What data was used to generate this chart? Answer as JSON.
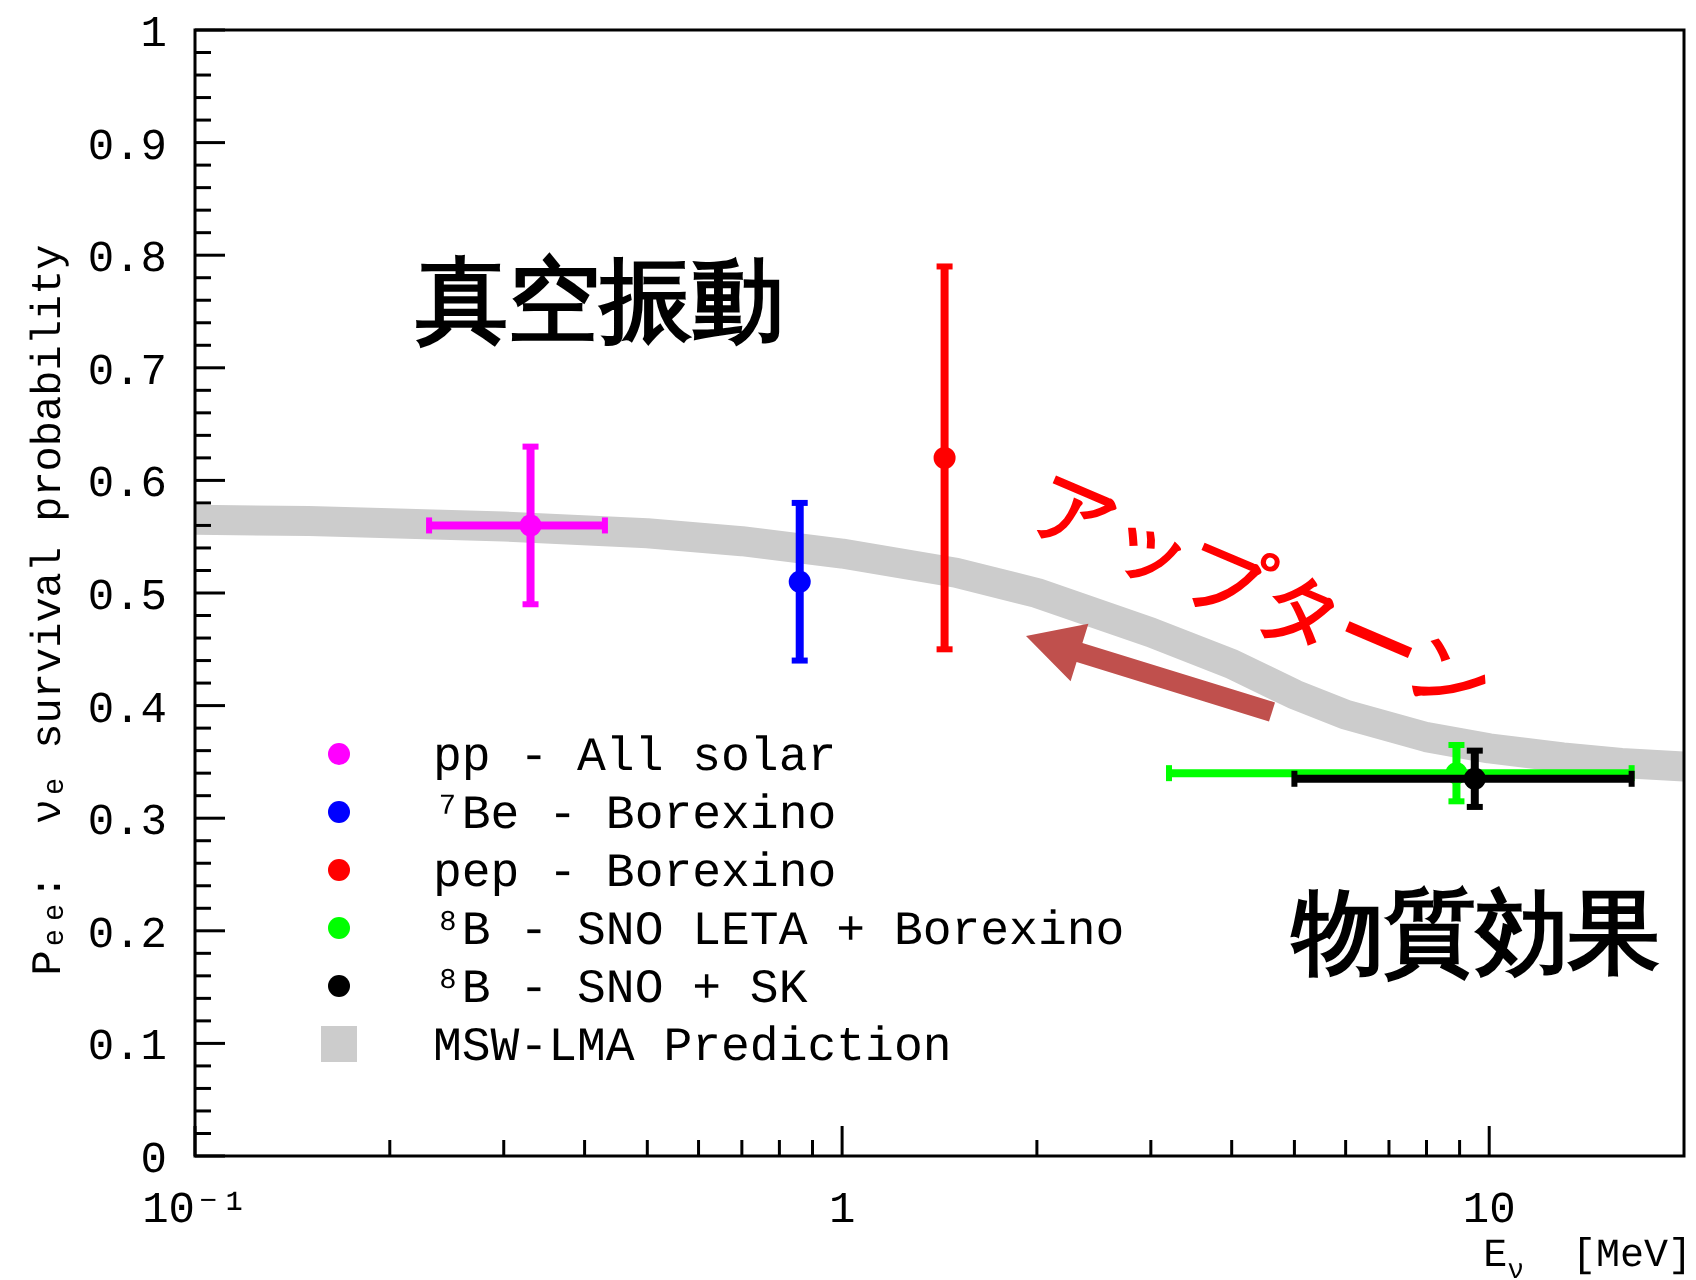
{
  "chart_data": {
    "type": "scatter",
    "xlabel": "E$_{ν}$  [MeV]",
    "ylabel": "Pₑₑ:  νₑ survival probability",
    "log": "x",
    "xlim": [
      0.1,
      20
    ],
    "ylim": [
      0,
      1
    ],
    "xticks": [
      {
        "value": 0.1,
        "label": "10⁻¹"
      },
      {
        "value": 0.2,
        "label": null
      },
      {
        "value": 0.3,
        "label": null
      },
      {
        "value": 0.4,
        "label": null
      },
      {
        "value": 0.5,
        "label": null
      },
      {
        "value": 0.6,
        "label": null
      },
      {
        "value": 0.7,
        "label": null
      },
      {
        "value": 0.8,
        "label": null
      },
      {
        "value": 0.9,
        "label": null
      },
      1,
      {
        "value": 2,
        "label": null
      },
      {
        "value": 3,
        "label": null
      },
      {
        "value": 4,
        "label": null
      },
      {
        "value": 5,
        "label": null
      },
      {
        "value": 6,
        "label": null
      },
      {
        "value": 7,
        "label": null
      },
      {
        "value": 8,
        "label": null
      },
      {
        "value": 9,
        "label": null
      },
      10
    ],
    "yticks": [
      0,
      {
        "value": 0.02,
        "label": null
      },
      {
        "value": 0.04,
        "label": null
      },
      {
        "value": 0.06,
        "label": null
      },
      {
        "value": 0.08,
        "label": null
      },
      0.1,
      {
        "value": 0.12,
        "label": null
      },
      {
        "value": 0.14,
        "label": null
      },
      {
        "value": 0.16,
        "label": null
      },
      {
        "value": 0.18,
        "label": null
      },
      0.2,
      {
        "value": 0.22,
        "label": null
      },
      {
        "value": 0.24,
        "label": null
      },
      {
        "value": 0.26,
        "label": null
      },
      {
        "value": 0.28,
        "label": null
      },
      0.3,
      {
        "value": 0.32,
        "label": null
      },
      {
        "value": 0.34,
        "label": null
      },
      {
        "value": 0.36,
        "label": null
      },
      {
        "value": 0.38,
        "label": null
      },
      0.4,
      {
        "value": 0.42,
        "label": null
      },
      {
        "value": 0.44,
        "label": null
      },
      {
        "value": 0.46,
        "label": null
      },
      {
        "value": 0.48,
        "label": null
      },
      0.5,
      {
        "value": 0.52,
        "label": null
      },
      {
        "value": 0.54,
        "label": null
      },
      {
        "value": 0.56,
        "label": null
      },
      {
        "value": 0.58,
        "label": null
      },
      0.6,
      {
        "value": 0.62,
        "label": null
      },
      {
        "value": 0.64,
        "label": null
      },
      {
        "value": 0.66,
        "label": null
      },
      {
        "value": 0.68,
        "label": null
      },
      0.7,
      {
        "value": 0.72,
        "label": null
      },
      {
        "value": 0.74,
        "label": null
      },
      {
        "value": 0.76,
        "label": null
      },
      {
        "value": 0.78,
        "label": null
      },
      0.8,
      {
        "value": 0.82,
        "label": null
      },
      {
        "value": 0.84,
        "label": null
      },
      {
        "value": 0.86,
        "label": null
      },
      {
        "value": 0.88,
        "label": null
      },
      0.9,
      {
        "value": 0.92,
        "label": null
      },
      {
        "value": 0.94,
        "label": null
      },
      {
        "value": 0.96,
        "label": null
      },
      {
        "value": 0.98,
        "label": null
      },
      1
    ],
    "legend": "bottom left",
    "annotations": [
      "真空振動",
      "アップターン",
      "物質効果"
    ],
    "series": [
      {
        "name": "pp - All solar",
        "color": "#ff00ff",
        "marker": "circle",
        "x": [
          0.33
        ],
        "values": [
          0.56
        ],
        "errors": [
          0.07
        ],
        "xerrors": [
          0.1
        ]
      },
      {
        "name": "⁷Be - Borexino",
        "color": "#0000ff",
        "marker": "circle",
        "x": [
          0.86
        ],
        "values": [
          0.51
        ],
        "errors": [
          0.07
        ]
      },
      {
        "name": "pep - Borexino",
        "color": "#ff0000",
        "marker": "circle",
        "x": [
          1.44
        ],
        "values": [
          0.62
        ],
        "errors": [
          0.17
        ]
      },
      {
        "name": "⁸B - SNO LETA + Borexino",
        "color": "#00ff00",
        "marker": "circle",
        "x": [
          8.9
        ],
        "values": [
          0.34
        ],
        "errors": [
          0.025
        ],
        "xerrors": [
          [
            3.2,
            16.6
          ]
        ]
      },
      {
        "name": "⁸B - SNO + SK",
        "color": "#000000",
        "marker": "circle",
        "x": [
          9.5
        ],
        "values": [
          0.335
        ],
        "errors": [
          0.025
        ],
        "xerrors": [
          [
            5.0,
            16.6
          ]
        ]
      },
      {
        "name": "MSW-LMA Prediction",
        "type": "line",
        "color": "#cccccc",
        "x": [
          0.1,
          0.15,
          0.2,
          0.3,
          0.5,
          0.7,
          1,
          1.5,
          2,
          3,
          4,
          5,
          6,
          8,
          10,
          13,
          16,
          20
        ],
        "values": [
          0.565,
          0.564,
          0.562,
          0.559,
          0.553,
          0.546,
          0.535,
          0.518,
          0.5,
          0.465,
          0.437,
          0.41,
          0.392,
          0.372,
          0.362,
          0.354,
          0.349,
          0.346
        ]
      }
    ]
  }
}
